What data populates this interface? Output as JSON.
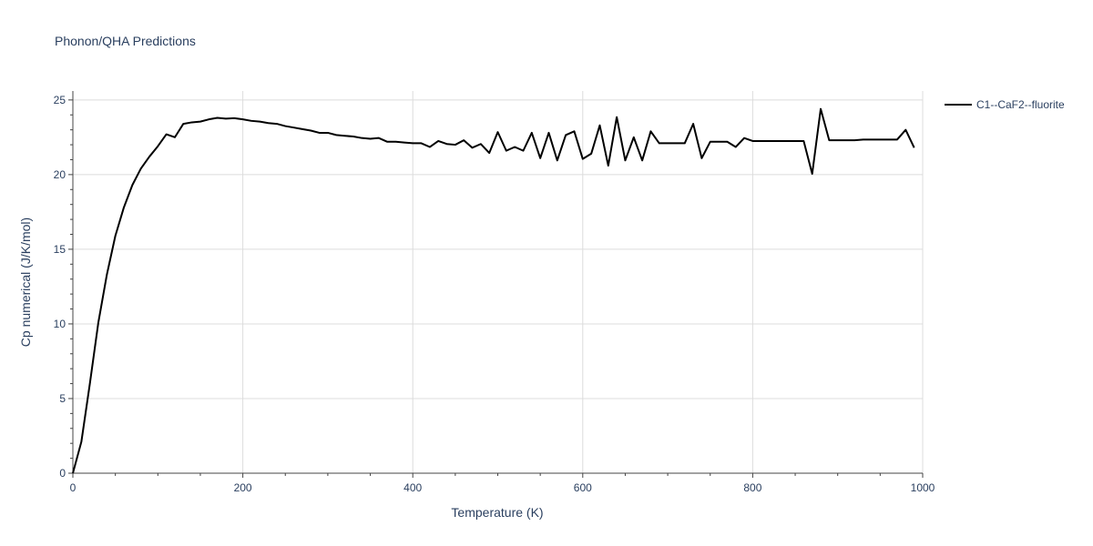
{
  "chart_data": {
    "type": "line",
    "title": "Phonon/QHA Predictions",
    "xlabel": "Temperature (K)",
    "ylabel": "Cp numerical (J/K/mol)",
    "xlim": [
      0,
      1000
    ],
    "ylim": [
      0,
      25.6
    ],
    "x_ticks": [
      0,
      200,
      400,
      600,
      800,
      1000
    ],
    "y_ticks": [
      0,
      5,
      10,
      15,
      20,
      25
    ],
    "x_tick_labels": [
      "0",
      "200",
      "400",
      "600",
      "800",
      "1000"
    ],
    "y_tick_labels": [
      "0",
      "5",
      "10",
      "15",
      "20",
      "25"
    ],
    "grid": true,
    "legend_position": "top-right",
    "series": [
      {
        "name": "C1--CaF2--fluorite",
        "color": "#000000",
        "x": [
          0,
          10,
          20,
          30,
          40,
          50,
          60,
          70,
          80,
          90,
          100,
          110,
          120,
          130,
          140,
          150,
          160,
          170,
          180,
          190,
          200,
          210,
          220,
          230,
          240,
          250,
          260,
          270,
          280,
          290,
          300,
          310,
          320,
          330,
          340,
          350,
          360,
          370,
          380,
          390,
          400,
          410,
          420,
          430,
          440,
          450,
          460,
          470,
          480,
          490,
          500,
          510,
          520,
          530,
          540,
          550,
          560,
          570,
          580,
          590,
          600,
          610,
          620,
          630,
          640,
          650,
          660,
          670,
          680,
          690,
          700,
          710,
          720,
          730,
          740,
          750,
          760,
          770,
          780,
          790,
          800,
          810,
          820,
          830,
          840,
          850,
          860,
          870,
          880,
          890,
          900,
          910,
          920,
          930,
          940,
          950,
          960,
          970,
          980,
          990
        ],
        "y": [
          0,
          2.1,
          6.0,
          10.1,
          13.3,
          15.9,
          17.8,
          19.3,
          20.4,
          21.2,
          21.9,
          22.7,
          22.5,
          23.4,
          23.5,
          23.55,
          23.7,
          23.8,
          23.75,
          23.78,
          23.7,
          23.6,
          23.55,
          23.45,
          23.4,
          23.25,
          23.15,
          23.05,
          22.95,
          22.8,
          22.8,
          22.65,
          22.6,
          22.55,
          22.45,
          22.4,
          22.45,
          22.2,
          22.2,
          22.15,
          22.1,
          22.1,
          21.85,
          22.25,
          22.05,
          22.0,
          22.3,
          21.8,
          22.05,
          21.45,
          22.85,
          21.6,
          21.85,
          21.6,
          22.8,
          21.1,
          22.8,
          20.95,
          22.65,
          22.9,
          21.05,
          21.4,
          23.3,
          20.6,
          23.85,
          20.95,
          22.5,
          20.95,
          22.9,
          22.1,
          22.1,
          22.1,
          22.1,
          23.4,
          21.1,
          22.2,
          22.2,
          22.2,
          21.85,
          22.45,
          22.25,
          22.25,
          22.25,
          22.25,
          22.25,
          22.25,
          22.25,
          20.05,
          24.4,
          22.3,
          22.3,
          22.3,
          22.3,
          22.35,
          22.35,
          22.35,
          22.35,
          22.35,
          23.0,
          21.8
        ]
      }
    ]
  }
}
